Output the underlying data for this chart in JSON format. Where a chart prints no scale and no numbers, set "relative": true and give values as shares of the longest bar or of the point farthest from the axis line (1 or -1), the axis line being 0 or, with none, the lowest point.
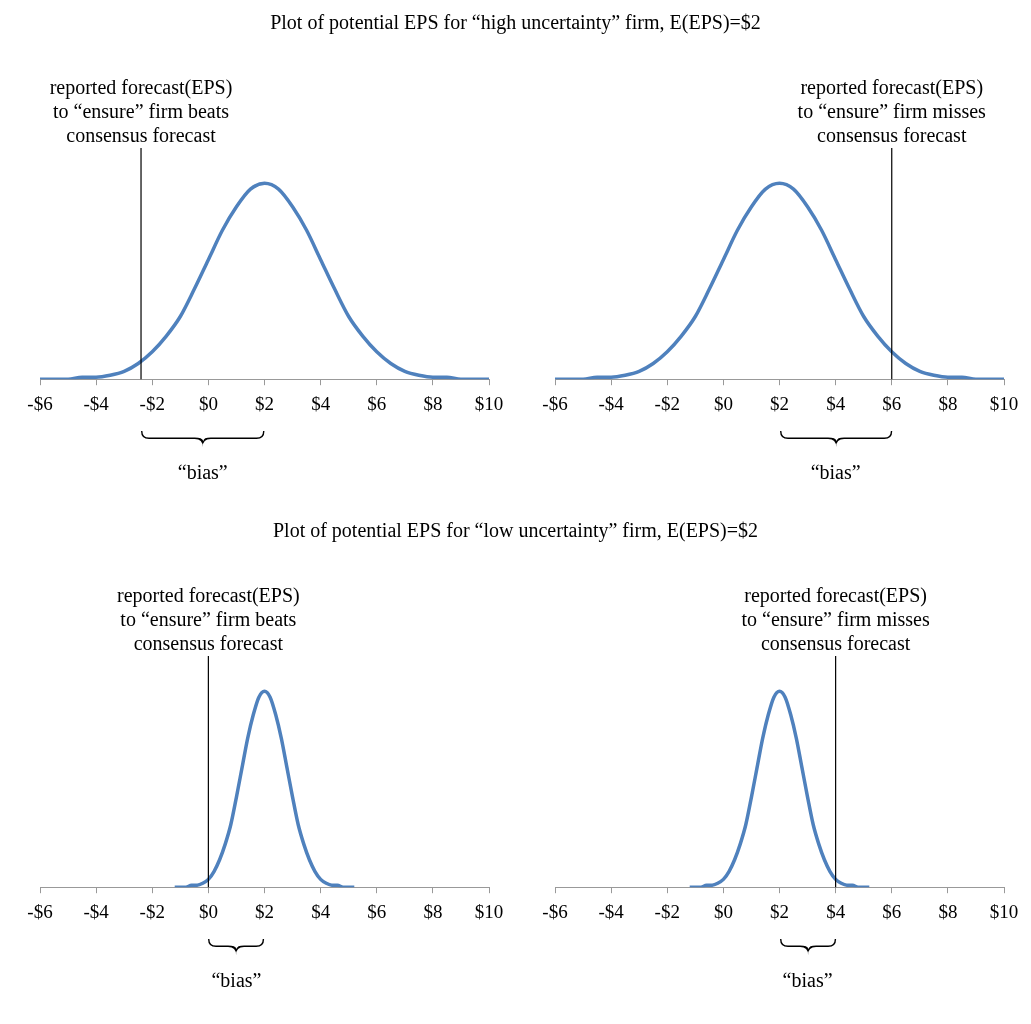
{
  "chart_data": [
    {
      "type": "line",
      "title": "Plot of potential EPS for “high uncertainty” firm, E(EPS)=$2",
      "relative": true,
      "tick_labels": "x",
      "x": [
        -6,
        -5.5,
        -5,
        -4.5,
        -4,
        -3.5,
        -3,
        -2.5,
        -2,
        -1.5,
        -1,
        -0.5,
        0,
        0.5,
        1,
        1.5,
        2,
        2.5,
        3,
        3.5,
        4,
        4.5,
        5,
        5.5,
        6,
        6.5,
        7,
        7.5,
        8,
        8.5,
        9,
        9.5,
        10
      ],
      "series": [
        {
          "color": "#4f81bd",
          "values": [
            0,
            0,
            0,
            0.01,
            0.01,
            0.02,
            0.04,
            0.08,
            0.14,
            0.22,
            0.32,
            0.46,
            0.61,
            0.76,
            0.88,
            0.97,
            1,
            0.97,
            0.88,
            0.76,
            0.61,
            0.46,
            0.32,
            0.22,
            0.14,
            0.08,
            0.04,
            0.02,
            0.01,
            0.01,
            0,
            0,
            0
          ]
        }
      ],
      "xlim": [
        -6,
        10
      ],
      "xticks": [
        {
          "value": -6,
          "label": "-$6"
        },
        {
          "value": -4,
          "label": "-$4"
        },
        {
          "value": -2,
          "label": "-$2"
        },
        {
          "value": 0,
          "label": "$0"
        },
        {
          "value": 2,
          "label": "$2"
        },
        {
          "value": 4,
          "label": "$4"
        },
        {
          "value": 6,
          "label": "$6"
        },
        {
          "value": 8,
          "label": "$8"
        },
        {
          "value": 10,
          "label": "$10"
        }
      ],
      "ref_lines": [
        {
          "axis": "x",
          "value": -2.4,
          "color": "#000000",
          "label": "reported forecast(EPS)\nto “ensure” firm beats\nconsensus forecast"
        }
      ],
      "annotations": [
        "“bias”"
      ]
    },
    {
      "type": "line",
      "relative": true,
      "tick_labels": "x",
      "x": [
        -6,
        -5.5,
        -5,
        -4.5,
        -4,
        -3.5,
        -3,
        -2.5,
        -2,
        -1.5,
        -1,
        -0.5,
        0,
        0.5,
        1,
        1.5,
        2,
        2.5,
        3,
        3.5,
        4,
        4.5,
        5,
        5.5,
        6,
        6.5,
        7,
        7.5,
        8,
        8.5,
        9,
        9.5,
        10
      ],
      "series": [
        {
          "color": "#4f81bd",
          "values": [
            0,
            0,
            0,
            0.01,
            0.01,
            0.02,
            0.04,
            0.08,
            0.14,
            0.22,
            0.32,
            0.46,
            0.61,
            0.76,
            0.88,
            0.97,
            1,
            0.97,
            0.88,
            0.76,
            0.61,
            0.46,
            0.32,
            0.22,
            0.14,
            0.08,
            0.04,
            0.02,
            0.01,
            0.01,
            0,
            0,
            0
          ]
        }
      ],
      "xlim": [
        -6,
        10
      ],
      "xticks": [
        {
          "value": -6,
          "label": "-$6"
        },
        {
          "value": -4,
          "label": "-$4"
        },
        {
          "value": -2,
          "label": "-$2"
        },
        {
          "value": 0,
          "label": "$0"
        },
        {
          "value": 2,
          "label": "$2"
        },
        {
          "value": 4,
          "label": "$4"
        },
        {
          "value": 6,
          "label": "$6"
        },
        {
          "value": 8,
          "label": "$8"
        },
        {
          "value": 10,
          "label": "$10"
        }
      ],
      "ref_lines": [
        {
          "axis": "x",
          "value": 6,
          "color": "#000000",
          "label": "reported forecast(EPS)\nto “ensure” firm misses\nconsensus forecast"
        }
      ],
      "annotations": [
        "“bias”"
      ]
    },
    {
      "type": "line",
      "title": "Plot of potential EPS for “low uncertainty” firm, E(EPS)=$2",
      "relative": true,
      "tick_labels": "x",
      "x": [
        -1.2,
        -1,
        -0.8,
        -0.6,
        -0.4,
        -0.2,
        0,
        0.2,
        0.4,
        0.6,
        0.8,
        1,
        1.2,
        1.4,
        1.6,
        1.8,
        2,
        2.2,
        2.4,
        2.6,
        2.8,
        3,
        3.2,
        3.4,
        3.6,
        3.8,
        4,
        4.2,
        4.4,
        4.6,
        4.8,
        5,
        5.2
      ],
      "series": [
        {
          "color": "#4f81bd",
          "values": [
            0,
            0,
            0,
            0.01,
            0.01,
            0.02,
            0.04,
            0.08,
            0.14,
            0.22,
            0.32,
            0.46,
            0.61,
            0.76,
            0.88,
            0.97,
            1,
            0.97,
            0.88,
            0.76,
            0.61,
            0.46,
            0.32,
            0.22,
            0.14,
            0.08,
            0.04,
            0.02,
            0.01,
            0.01,
            0,
            0,
            0
          ]
        }
      ],
      "xlim": [
        -6,
        10
      ],
      "xticks": [
        {
          "value": -6,
          "label": "-$6"
        },
        {
          "value": -4,
          "label": "-$4"
        },
        {
          "value": -2,
          "label": "-$2"
        },
        {
          "value": 0,
          "label": "$0"
        },
        {
          "value": 2,
          "label": "$2"
        },
        {
          "value": 4,
          "label": "$4"
        },
        {
          "value": 6,
          "label": "$6"
        },
        {
          "value": 8,
          "label": "$8"
        },
        {
          "value": 10,
          "label": "$10"
        }
      ],
      "ref_lines": [
        {
          "axis": "x",
          "value": 0,
          "color": "#000000",
          "label": "reported forecast(EPS)\nto “ensure” firm beats\nconsensus forecast"
        }
      ],
      "annotations": [
        "“bias”"
      ]
    },
    {
      "type": "line",
      "relative": true,
      "tick_labels": "x",
      "x": [
        -1.2,
        -1,
        -0.8,
        -0.6,
        -0.4,
        -0.2,
        0,
        0.2,
        0.4,
        0.6,
        0.8,
        1,
        1.2,
        1.4,
        1.6,
        1.8,
        2,
        2.2,
        2.4,
        2.6,
        2.8,
        3,
        3.2,
        3.4,
        3.6,
        3.8,
        4,
        4.2,
        4.4,
        4.6,
        4.8,
        5,
        5.2
      ],
      "series": [
        {
          "color": "#4f81bd",
          "values": [
            0,
            0,
            0,
            0.01,
            0.01,
            0.02,
            0.04,
            0.08,
            0.14,
            0.22,
            0.32,
            0.46,
            0.61,
            0.76,
            0.88,
            0.97,
            1,
            0.97,
            0.88,
            0.76,
            0.61,
            0.46,
            0.32,
            0.22,
            0.14,
            0.08,
            0.04,
            0.02,
            0.01,
            0.01,
            0,
            0,
            0
          ]
        }
      ],
      "xlim": [
        -6,
        10
      ],
      "xticks": [
        {
          "value": -6,
          "label": "-$6"
        },
        {
          "value": -4,
          "label": "-$4"
        },
        {
          "value": -2,
          "label": "-$2"
        },
        {
          "value": 0,
          "label": "$0"
        },
        {
          "value": 2,
          "label": "$2"
        },
        {
          "value": 4,
          "label": "$4"
        },
        {
          "value": 6,
          "label": "$6"
        },
        {
          "value": 8,
          "label": "$8"
        },
        {
          "value": 10,
          "label": "$10"
        }
      ],
      "ref_lines": [
        {
          "axis": "x",
          "value": 4,
          "color": "#000000",
          "label": "reported forecast(EPS)\nto “ensure” firm misses\nconsensus forecast"
        }
      ],
      "annotations": [
        "“bias”"
      ]
    }
  ]
}
